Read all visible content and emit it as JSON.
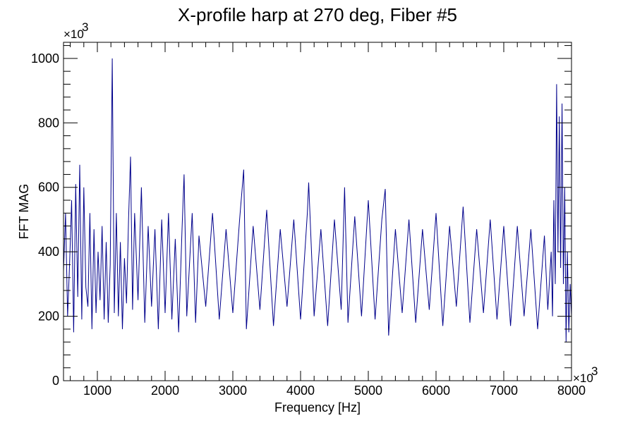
{
  "chart_data": {
    "type": "line",
    "title": "X-profile harp at 270 deg, Fiber #5",
    "xlabel": "Frequency [Hz]",
    "ylabel": "FFT MAG",
    "x_multiplier_label": "×10",
    "x_multiplier_exponent": "3",
    "y_multiplier_label": "×10",
    "y_multiplier_exponent": "3",
    "xlim": [
      500,
      8000
    ],
    "ylim": [
      0,
      1050
    ],
    "x_ticks": [
      "1000",
      "2000",
      "3000",
      "4000",
      "5000",
      "6000",
      "7000",
      "8000"
    ],
    "y_ticks": [
      "0",
      "200",
      "400",
      "600",
      "800",
      "1000"
    ],
    "series_color": "#00008b",
    "grid": false,
    "series": [
      {
        "points": [
          [
            500,
            340
          ],
          [
            530,
            520
          ],
          [
            560,
            200
          ],
          [
            590,
            360
          ],
          [
            620,
            560
          ],
          [
            650,
            150
          ],
          [
            680,
            610
          ],
          [
            710,
            260
          ],
          [
            740,
            670
          ],
          [
            770,
            190
          ],
          [
            800,
            600
          ],
          [
            830,
            290
          ],
          [
            860,
            230
          ],
          [
            890,
            520
          ],
          [
            920,
            160
          ],
          [
            950,
            470
          ],
          [
            980,
            210
          ],
          [
            1010,
            400
          ],
          [
            1040,
            250
          ],
          [
            1070,
            480
          ],
          [
            1100,
            190
          ],
          [
            1130,
            430
          ],
          [
            1160,
            180
          ],
          [
            1190,
            360
          ],
          [
            1220,
            1000
          ],
          [
            1250,
            210
          ],
          [
            1280,
            520
          ],
          [
            1310,
            200
          ],
          [
            1340,
            430
          ],
          [
            1370,
            160
          ],
          [
            1400,
            380
          ],
          [
            1430,
            240
          ],
          [
            1460,
            500
          ],
          [
            1490,
            695
          ],
          [
            1520,
            220
          ],
          [
            1550,
            520
          ],
          [
            1600,
            250
          ],
          [
            1650,
            600
          ],
          [
            1700,
            180
          ],
          [
            1750,
            480
          ],
          [
            1800,
            230
          ],
          [
            1850,
            470
          ],
          [
            1900,
            160
          ],
          [
            1950,
            500
          ],
          [
            2000,
            210
          ],
          [
            2050,
            520
          ],
          [
            2100,
            190
          ],
          [
            2150,
            440
          ],
          [
            2200,
            150
          ],
          [
            2250,
            470
          ],
          [
            2280,
            640
          ],
          [
            2320,
            200
          ],
          [
            2400,
            520
          ],
          [
            2450,
            180
          ],
          [
            2500,
            450
          ],
          [
            2600,
            230
          ],
          [
            2700,
            520
          ],
          [
            2800,
            190
          ],
          [
            2900,
            470
          ],
          [
            3000,
            210
          ],
          [
            3100,
            500
          ],
          [
            3160,
            655
          ],
          [
            3200,
            160
          ],
          [
            3300,
            480
          ],
          [
            3400,
            220
          ],
          [
            3500,
            530
          ],
          [
            3600,
            170
          ],
          [
            3700,
            470
          ],
          [
            3800,
            230
          ],
          [
            3900,
            500
          ],
          [
            4000,
            190
          ],
          [
            4100,
            520
          ],
          [
            4120,
            615
          ],
          [
            4200,
            200
          ],
          [
            4300,
            470
          ],
          [
            4400,
            170
          ],
          [
            4500,
            500
          ],
          [
            4600,
            220
          ],
          [
            4650,
            600
          ],
          [
            4700,
            180
          ],
          [
            4800,
            510
          ],
          [
            4900,
            200
          ],
          [
            5000,
            560
          ],
          [
            5100,
            190
          ],
          [
            5200,
            500
          ],
          [
            5250,
            595
          ],
          [
            5300,
            140
          ],
          [
            5400,
            470
          ],
          [
            5500,
            210
          ],
          [
            5600,
            500
          ],
          [
            5700,
            180
          ],
          [
            5800,
            470
          ],
          [
            5900,
            220
          ],
          [
            6000,
            520
          ],
          [
            6100,
            170
          ],
          [
            6200,
            480
          ],
          [
            6300,
            230
          ],
          [
            6400,
            540
          ],
          [
            6500,
            180
          ],
          [
            6600,
            470
          ],
          [
            6700,
            210
          ],
          [
            6800,
            500
          ],
          [
            6900,
            190
          ],
          [
            7000,
            480
          ],
          [
            7100,
            170
          ],
          [
            7200,
            480
          ],
          [
            7300,
            200
          ],
          [
            7400,
            470
          ],
          [
            7500,
            160
          ],
          [
            7600,
            450
          ],
          [
            7650,
            220
          ],
          [
            7700,
            400
          ],
          [
            7720,
            200
          ],
          [
            7740,
            560
          ],
          [
            7760,
            300
          ],
          [
            7780,
            920
          ],
          [
            7800,
            400
          ],
          [
            7820,
            820
          ],
          [
            7840,
            350
          ],
          [
            7860,
            860
          ],
          [
            7880,
            300
          ],
          [
            7900,
            600
          ],
          [
            7920,
            120
          ],
          [
            7940,
            400
          ],
          [
            7960,
            150
          ],
          [
            7980,
            300
          ],
          [
            8000,
            200
          ]
        ]
      }
    ]
  }
}
